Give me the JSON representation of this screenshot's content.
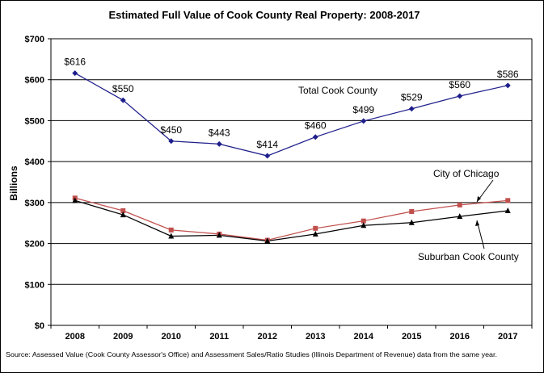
{
  "chart_data": {
    "type": "line",
    "title": "Estimated Full Value of Cook County Real Property: 2008-2017",
    "xlabel": "",
    "ylabel": "Billions",
    "ylim": [
      0,
      700
    ],
    "ytick_values": [
      0,
      100,
      200,
      300,
      400,
      500,
      600,
      700
    ],
    "ytick_labels": [
      "$0",
      "$100",
      "$200",
      "$300",
      "$400",
      "$500",
      "$600",
      "$700"
    ],
    "categories": [
      "2008",
      "2009",
      "2010",
      "2011",
      "2012",
      "2013",
      "2014",
      "2015",
      "2016",
      "2017"
    ],
    "grid": true,
    "legend": "none",
    "series": [
      {
        "name": "Total Cook County",
        "color": "#1F1F8C",
        "marker": "diamond",
        "values": [
          616,
          550,
          450,
          443,
          414,
          460,
          499,
          529,
          560,
          586
        ],
        "labels": [
          "$616",
          "$550",
          "$450",
          "$443",
          "$414",
          "$460",
          "$499",
          "$529",
          "$560",
          "$586"
        ]
      },
      {
        "name": "City of Chicago",
        "color": "#C0504D",
        "marker": "square",
        "values": [
          311,
          280,
          233,
          223,
          208,
          237,
          255,
          278,
          294,
          305
        ]
      },
      {
        "name": "Suburban Cook County",
        "color": "#000000",
        "marker": "triangle",
        "values": [
          305,
          270,
          218,
          220,
          206,
          223,
          244,
          251,
          266,
          280
        ]
      }
    ],
    "source": "Source: Assessed Value (Cook County Assessor's Office) and Assessment Sales/Ratio Studies (Illinois Department of Revenue) data from the same year."
  }
}
